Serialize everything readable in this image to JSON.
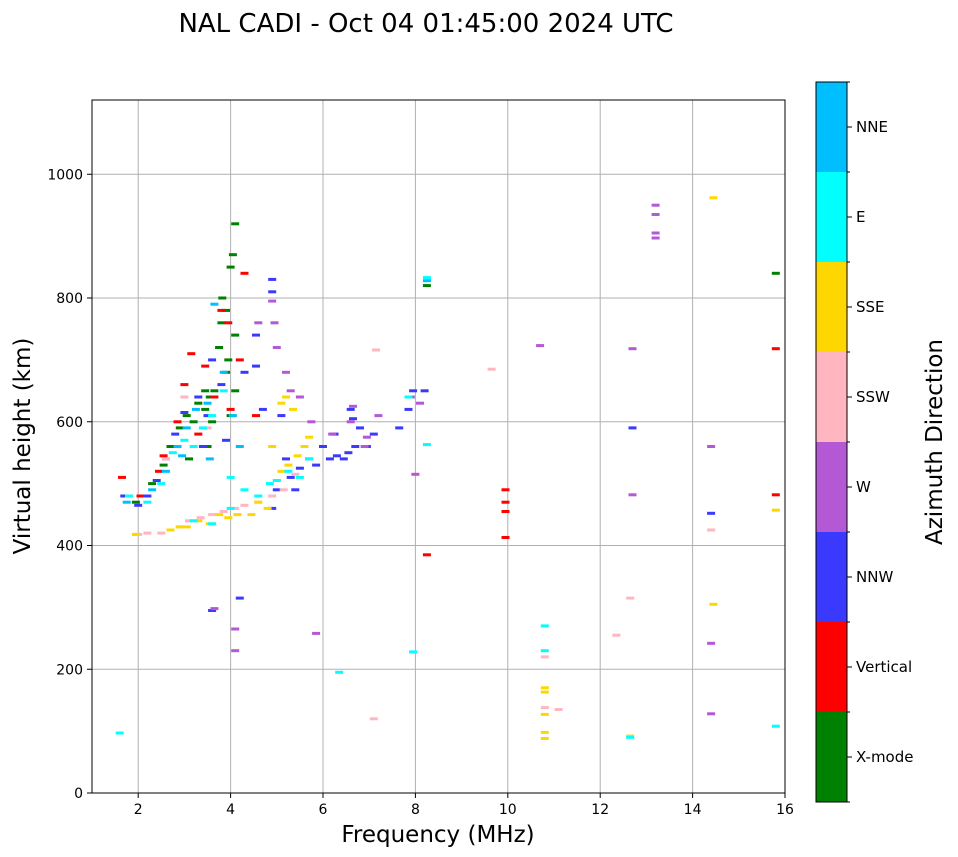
{
  "chart_data": {
    "type": "scatter",
    "title": "NAL CADI - Oct 04 01:45:00 2024 UTC",
    "xlabel": "Frequency (MHz)",
    "ylabel": "Virtual height (km)",
    "xlim": [
      1,
      16
    ],
    "ylim": [
      0,
      1120
    ],
    "xticks": [
      2,
      4,
      6,
      8,
      10,
      12,
      14,
      16
    ],
    "yticks": [
      0,
      200,
      400,
      600,
      800,
      1000
    ],
    "grid": true,
    "colorbar": {
      "label": "Azimuth Direction",
      "categories": [
        "X-mode",
        "Vertical",
        "NNW",
        "W",
        "SSW",
        "SSE",
        "E",
        "NNE"
      ],
      "colors": [
        "#008000",
        "#ff0000",
        "#3a3aff",
        "#b459d6",
        "#ffb6c1",
        "#ffd700",
        "#00ffff",
        "#00bfff"
      ]
    },
    "series": [
      {
        "name": "X-mode",
        "points": [
          [
            1.95,
            470
          ],
          [
            2.3,
            500
          ],
          [
            2.55,
            530
          ],
          [
            2.7,
            560
          ],
          [
            2.9,
            590
          ],
          [
            3.05,
            610
          ],
          [
            3.2,
            600
          ],
          [
            3.3,
            630
          ],
          [
            3.45,
            650
          ],
          [
            3.55,
            640
          ],
          [
            3.6,
            600
          ],
          [
            3.75,
            720
          ],
          [
            3.8,
            760
          ],
          [
            3.82,
            800
          ],
          [
            3.9,
            780
          ],
          [
            3.95,
            700
          ],
          [
            4.0,
            850
          ],
          [
            4.05,
            870
          ],
          [
            4.1,
            920
          ],
          [
            4.1,
            740
          ],
          [
            4.1,
            650
          ],
          [
            4.0,
            610
          ],
          [
            3.9,
            680
          ],
          [
            3.5,
            560
          ],
          [
            3.1,
            540
          ],
          [
            8.25,
            820
          ],
          [
            15.8,
            840
          ],
          [
            3.45,
            620
          ],
          [
            3.65,
            650
          ]
        ]
      },
      {
        "name": "Vertical",
        "points": [
          [
            1.65,
            510
          ],
          [
            2.05,
            480
          ],
          [
            2.45,
            520
          ],
          [
            2.55,
            545
          ],
          [
            2.85,
            600
          ],
          [
            3.0,
            660
          ],
          [
            3.15,
            710
          ],
          [
            3.45,
            690
          ],
          [
            3.65,
            640
          ],
          [
            3.8,
            780
          ],
          [
            3.95,
            760
          ],
          [
            4.0,
            620
          ],
          [
            4.3,
            840
          ],
          [
            4.55,
            610
          ],
          [
            8.25,
            385
          ],
          [
            9.95,
            490
          ],
          [
            9.95,
            470
          ],
          [
            9.95,
            455
          ],
          [
            9.95,
            413
          ],
          [
            15.8,
            718
          ],
          [
            15.8,
            482
          ],
          [
            3.3,
            580
          ],
          [
            4.2,
            700
          ]
        ]
      },
      {
        "name": "NNW",
        "points": [
          [
            1.7,
            480
          ],
          [
            2.0,
            465
          ],
          [
            2.2,
            480
          ],
          [
            2.4,
            505
          ],
          [
            2.6,
            540
          ],
          [
            2.8,
            580
          ],
          [
            3.0,
            615
          ],
          [
            3.3,
            640
          ],
          [
            3.4,
            560
          ],
          [
            3.5,
            610
          ],
          [
            3.6,
            700
          ],
          [
            3.8,
            660
          ],
          [
            3.9,
            570
          ],
          [
            4.2,
            315
          ],
          [
            4.3,
            680
          ],
          [
            4.55,
            740
          ],
          [
            4.55,
            690
          ],
          [
            4.7,
            620
          ],
          [
            4.9,
            830
          ],
          [
            4.9,
            810
          ],
          [
            5.1,
            610
          ],
          [
            5.2,
            540
          ],
          [
            5.3,
            510
          ],
          [
            5.5,
            525
          ],
          [
            5.7,
            540
          ],
          [
            5.85,
            530
          ],
          [
            6.0,
            560
          ],
          [
            6.15,
            540
          ],
          [
            6.3,
            545
          ],
          [
            6.45,
            540
          ],
          [
            6.55,
            550
          ],
          [
            6.7,
            560
          ],
          [
            6.8,
            590
          ],
          [
            6.95,
            560
          ],
          [
            7.1,
            580
          ],
          [
            7.65,
            590
          ],
          [
            7.85,
            620
          ],
          [
            7.95,
            650
          ],
          [
            8.2,
            650
          ],
          [
            12.7,
            590
          ],
          [
            14.4,
            452
          ],
          [
            3.6,
            295
          ],
          [
            4.9,
            460
          ],
          [
            5.0,
            490
          ],
          [
            5.4,
            490
          ],
          [
            6.25,
            580
          ],
          [
            6.6,
            620
          ],
          [
            6.65,
            605
          ]
        ]
      },
      {
        "name": "W",
        "points": [
          [
            3.65,
            298
          ],
          [
            4.1,
            265
          ],
          [
            4.6,
            760
          ],
          [
            4.9,
            795
          ],
          [
            4.95,
            760
          ],
          [
            5.0,
            720
          ],
          [
            5.2,
            680
          ],
          [
            5.5,
            640
          ],
          [
            5.75,
            600
          ],
          [
            6.2,
            580
          ],
          [
            6.6,
            600
          ],
          [
            6.65,
            625
          ],
          [
            6.95,
            575
          ],
          [
            7.2,
            610
          ],
          [
            7.9,
            640
          ],
          [
            8.1,
            630
          ],
          [
            8.0,
            515
          ],
          [
            5.85,
            258
          ],
          [
            10.7,
            723
          ],
          [
            12.7,
            718
          ],
          [
            12.7,
            482
          ],
          [
            13.2,
            950
          ],
          [
            13.2,
            935
          ],
          [
            13.2,
            905
          ],
          [
            13.2,
            897
          ],
          [
            14.4,
            560
          ],
          [
            14.4,
            242
          ],
          [
            14.4,
            128
          ],
          [
            5.3,
            650
          ],
          [
            4.1,
            230
          ],
          [
            6.9,
            560
          ]
        ]
      },
      {
        "name": "SSW",
        "points": [
          [
            2.0,
            418
          ],
          [
            2.2,
            420
          ],
          [
            2.5,
            420
          ],
          [
            2.7,
            425
          ],
          [
            2.9,
            430
          ],
          [
            3.1,
            440
          ],
          [
            3.35,
            445
          ],
          [
            3.6,
            450
          ],
          [
            3.85,
            455
          ],
          [
            4.1,
            460
          ],
          [
            4.3,
            465
          ],
          [
            4.6,
            470
          ],
          [
            4.9,
            480
          ],
          [
            5.15,
            490
          ],
          [
            5.4,
            515
          ],
          [
            7.1,
            120
          ],
          [
            7.15,
            716
          ],
          [
            10.8,
            220
          ],
          [
            10.8,
            138
          ],
          [
            11.1,
            135
          ],
          [
            12.35,
            255
          ],
          [
            12.65,
            315
          ],
          [
            14.4,
            425
          ],
          [
            2.6,
            540
          ],
          [
            3.0,
            640
          ],
          [
            3.5,
            590
          ],
          [
            9.65,
            685
          ]
        ]
      },
      {
        "name": "SSE",
        "points": [
          [
            1.95,
            418
          ],
          [
            2.7,
            425
          ],
          [
            2.9,
            430
          ],
          [
            3.05,
            430
          ],
          [
            3.3,
            440
          ],
          [
            3.55,
            435
          ],
          [
            3.75,
            450
          ],
          [
            3.95,
            445
          ],
          [
            4.15,
            450
          ],
          [
            4.45,
            450
          ],
          [
            4.6,
            470
          ],
          [
            4.8,
            460
          ],
          [
            5.0,
            505
          ],
          [
            5.1,
            520
          ],
          [
            5.25,
            530
          ],
          [
            5.45,
            545
          ],
          [
            5.6,
            560
          ],
          [
            5.7,
            575
          ],
          [
            5.1,
            630
          ],
          [
            5.2,
            640
          ],
          [
            10.8,
            170
          ],
          [
            10.8,
            163
          ],
          [
            10.8,
            127
          ],
          [
            10.8,
            98
          ],
          [
            10.8,
            88
          ],
          [
            12.65,
            92
          ],
          [
            14.45,
            962
          ],
          [
            14.45,
            305
          ],
          [
            15.8,
            457
          ],
          [
            4.9,
            560
          ],
          [
            5.35,
            620
          ]
        ]
      },
      {
        "name": "E",
        "points": [
          [
            1.6,
            97
          ],
          [
            1.8,
            480
          ],
          [
            2.2,
            470
          ],
          [
            2.5,
            500
          ],
          [
            2.75,
            550
          ],
          [
            3.0,
            570
          ],
          [
            3.2,
            560
          ],
          [
            3.4,
            590
          ],
          [
            3.6,
            610
          ],
          [
            3.85,
            650
          ],
          [
            4.0,
            510
          ],
          [
            4.3,
            490
          ],
          [
            4.6,
            480
          ],
          [
            4.85,
            500
          ],
          [
            5.0,
            505
          ],
          [
            5.25,
            520
          ],
          [
            5.5,
            510
          ],
          [
            5.7,
            540
          ],
          [
            6.35,
            195
          ],
          [
            7.95,
            228
          ],
          [
            8.25,
            833
          ],
          [
            8.25,
            563
          ],
          [
            7.85,
            640
          ],
          [
            10.8,
            270
          ],
          [
            10.8,
            230
          ],
          [
            12.65,
            90
          ],
          [
            15.8,
            108
          ],
          [
            3.2,
            440
          ],
          [
            3.6,
            435
          ],
          [
            4.0,
            460
          ]
        ]
      },
      {
        "name": "NNE",
        "points": [
          [
            1.75,
            470
          ],
          [
            2.3,
            490
          ],
          [
            2.6,
            520
          ],
          [
            2.85,
            560
          ],
          [
            3.05,
            590
          ],
          [
            3.25,
            620
          ],
          [
            3.5,
            630
          ],
          [
            3.65,
            790
          ],
          [
            3.85,
            680
          ],
          [
            4.05,
            610
          ],
          [
            4.2,
            560
          ],
          [
            8.25,
            828
          ],
          [
            2.95,
            545
          ],
          [
            3.55,
            540
          ]
        ]
      }
    ]
  }
}
